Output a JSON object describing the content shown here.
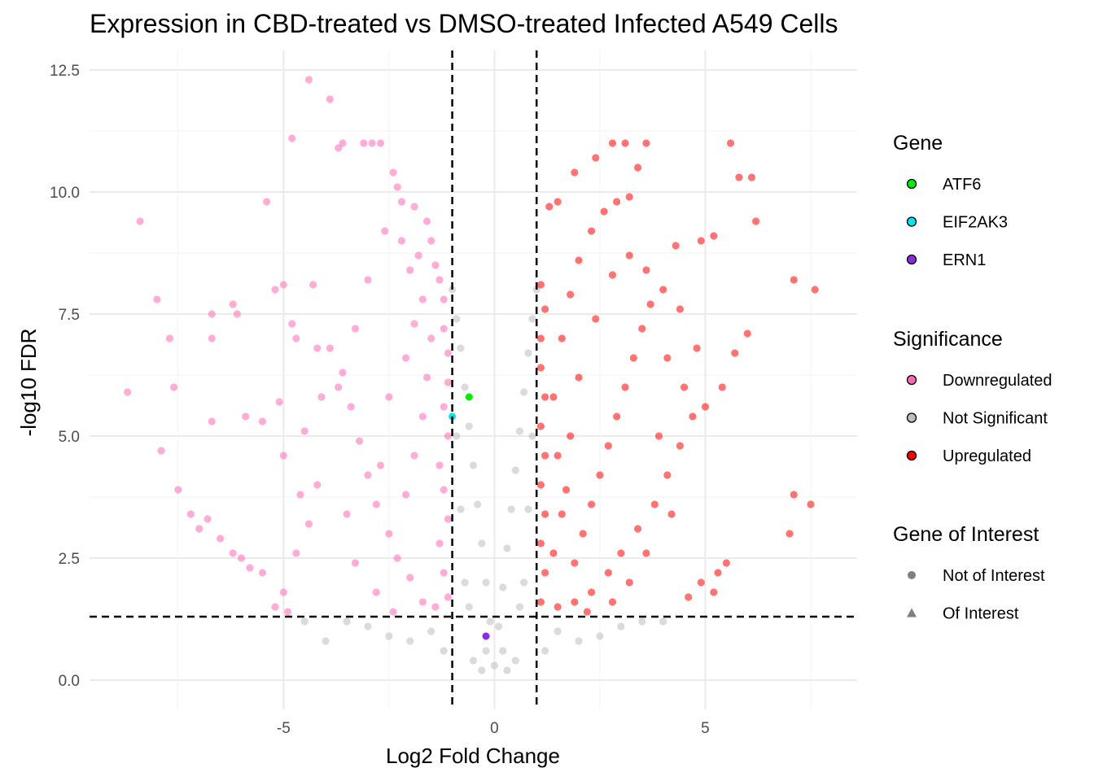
{
  "chart_data": {
    "type": "scatter",
    "title": "Expression in CBD-treated vs DMSO-treated Infected A549 Cells",
    "xlabel": "Log2 Fold Change",
    "ylabel": "-log10 FDR",
    "xlim": [
      -9.6,
      8.6
    ],
    "ylim": [
      -0.6,
      12.9
    ],
    "x_ticks": [
      -5,
      0,
      5
    ],
    "x_tick_labels": [
      "-5",
      "0",
      "5"
    ],
    "y_ticks": [
      0,
      2.5,
      5,
      7.5,
      10,
      12.5
    ],
    "y_tick_labels": [
      "0.0",
      "2.5",
      "5.0",
      "7.5",
      "10.0",
      "12.5"
    ],
    "grid": true,
    "thresholds": {
      "log2fc": [
        -1,
        1
      ],
      "neg_log10_fdr": 1.3
    },
    "colors": {
      "Downregulated": "#ff69b4",
      "Not Significant": "#bebebe",
      "Upregulated": "#ff0000",
      "ATF6": "#00ee00",
      "EIF2AK3": "#00e5ee",
      "ERN1": "#8a2be2"
    },
    "series": [
      {
        "name": "Downregulated",
        "points": [
          [
            -8.4,
            9.4
          ],
          [
            -8.0,
            7.8
          ],
          [
            -8.7,
            5.9
          ],
          [
            -7.7,
            7.0
          ],
          [
            -7.6,
            6.0
          ],
          [
            -7.9,
            4.7
          ],
          [
            -7.5,
            3.9
          ],
          [
            -7.2,
            3.4
          ],
          [
            -7.0,
            3.1
          ],
          [
            -6.8,
            3.3
          ],
          [
            -6.7,
            7.5
          ],
          [
            -6.7,
            7.0
          ],
          [
            -6.7,
            5.3
          ],
          [
            -6.5,
            2.9
          ],
          [
            -6.2,
            2.6
          ],
          [
            -6.0,
            2.5
          ],
          [
            -5.8,
            2.3
          ],
          [
            -5.5,
            2.2
          ],
          [
            -6.2,
            7.7
          ],
          [
            -6.1,
            7.5
          ],
          [
            -5.9,
            5.4
          ],
          [
            -5.5,
            5.3
          ],
          [
            -5.4,
            9.8
          ],
          [
            -5.2,
            8.0
          ],
          [
            -5.1,
            5.7
          ],
          [
            -5.0,
            4.6
          ],
          [
            -5.0,
            8.1
          ],
          [
            -4.8,
            7.3
          ],
          [
            -4.7,
            7.0
          ],
          [
            -4.6,
            3.8
          ],
          [
            -4.5,
            5.1
          ],
          [
            -4.3,
            8.1
          ],
          [
            -4.2,
            6.8
          ],
          [
            -4.1,
            5.8
          ],
          [
            -4.4,
            12.3
          ],
          [
            -3.9,
            11.9
          ],
          [
            -4.8,
            11.1
          ],
          [
            -3.7,
            10.9
          ],
          [
            -3.6,
            11.0
          ],
          [
            -3.1,
            11.0
          ],
          [
            -2.9,
            11.0
          ],
          [
            -2.7,
            11.0
          ],
          [
            -2.4,
            10.4
          ],
          [
            -2.3,
            10.1
          ],
          [
            -2.2,
            9.8
          ],
          [
            -1.9,
            9.7
          ],
          [
            -1.6,
            9.4
          ],
          [
            -1.5,
            9.0
          ],
          [
            -1.8,
            8.7
          ],
          [
            -1.4,
            8.5
          ],
          [
            -1.3,
            8.2
          ],
          [
            -1.2,
            7.8
          ],
          [
            -1.2,
            7.2
          ],
          [
            -1.1,
            6.7
          ],
          [
            -1.1,
            6.1
          ],
          [
            -1.2,
            5.6
          ],
          [
            -1.1,
            5.0
          ],
          [
            -1.3,
            4.4
          ],
          [
            -1.2,
            3.9
          ],
          [
            -1.1,
            3.3
          ],
          [
            -1.3,
            2.8
          ],
          [
            -1.2,
            2.2
          ],
          [
            -1.1,
            1.7
          ],
          [
            -1.4,
            1.5
          ],
          [
            -1.7,
            1.6
          ],
          [
            -2.0,
            2.1
          ],
          [
            -2.3,
            2.5
          ],
          [
            -2.5,
            3.0
          ],
          [
            -2.8,
            3.6
          ],
          [
            -3.0,
            4.2
          ],
          [
            -3.2,
            4.9
          ],
          [
            -3.4,
            5.6
          ],
          [
            -3.6,
            6.3
          ],
          [
            -3.9,
            6.8
          ],
          [
            -4.2,
            4.0
          ],
          [
            -4.4,
            3.2
          ],
          [
            -4.7,
            2.6
          ],
          [
            -5.0,
            1.8
          ],
          [
            -5.2,
            1.5
          ],
          [
            -4.9,
            1.4
          ],
          [
            -3.3,
            2.4
          ],
          [
            -2.8,
            1.8
          ],
          [
            -2.4,
            1.4
          ],
          [
            -2.1,
            3.8
          ],
          [
            -1.9,
            4.6
          ],
          [
            -1.7,
            5.4
          ],
          [
            -1.6,
            6.2
          ],
          [
            -1.5,
            7.0
          ],
          [
            -1.7,
            7.8
          ],
          [
            -2.0,
            8.4
          ],
          [
            -2.2,
            9.0
          ],
          [
            -2.6,
            9.2
          ],
          [
            -3.0,
            8.2
          ],
          [
            -3.3,
            7.2
          ],
          [
            -3.7,
            6.0
          ],
          [
            -2.5,
            5.8
          ],
          [
            -2.1,
            6.6
          ],
          [
            -1.9,
            7.3
          ],
          [
            -2.7,
            4.4
          ],
          [
            -3.5,
            3.4
          ]
        ]
      },
      {
        "name": "Not Significant",
        "points": [
          [
            -1.0,
            8.0
          ],
          [
            -0.9,
            7.4
          ],
          [
            -0.8,
            6.8
          ],
          [
            -0.7,
            6.0
          ],
          [
            -0.6,
            5.2
          ],
          [
            -0.5,
            4.4
          ],
          [
            -0.4,
            3.6
          ],
          [
            -0.3,
            2.8
          ],
          [
            -0.2,
            2.0
          ],
          [
            -0.1,
            1.2
          ],
          [
            0.0,
            0.3
          ],
          [
            0.1,
            1.1
          ],
          [
            0.2,
            1.9
          ],
          [
            0.3,
            2.7
          ],
          [
            0.4,
            3.5
          ],
          [
            0.5,
            4.3
          ],
          [
            0.6,
            5.1
          ],
          [
            0.7,
            5.9
          ],
          [
            0.8,
            6.7
          ],
          [
            0.9,
            7.4
          ],
          [
            1.0,
            8.0
          ],
          [
            -0.9,
            5.0
          ],
          [
            -0.8,
            3.5
          ],
          [
            -0.7,
            2.0
          ],
          [
            0.7,
            2.0
          ],
          [
            0.8,
            3.5
          ],
          [
            0.9,
            5.0
          ],
          [
            -1.5,
            1.0
          ],
          [
            -2.0,
            0.8
          ],
          [
            -2.5,
            0.9
          ],
          [
            -3.0,
            1.1
          ],
          [
            -3.5,
            1.2
          ],
          [
            -4.0,
            0.8
          ],
          [
            -4.5,
            1.2
          ],
          [
            1.5,
            1.0
          ],
          [
            2.0,
            0.8
          ],
          [
            2.5,
            0.9
          ],
          [
            3.0,
            1.1
          ],
          [
            3.5,
            1.2
          ],
          [
            4.0,
            1.2
          ],
          [
            -0.5,
            0.4
          ],
          [
            -0.3,
            0.2
          ],
          [
            0.3,
            0.2
          ],
          [
            0.5,
            0.4
          ],
          [
            -1.2,
            0.6
          ],
          [
            1.2,
            0.6
          ],
          [
            -0.6,
            1.5
          ],
          [
            0.6,
            1.5
          ],
          [
            -0.2,
            0.6
          ],
          [
            0.2,
            0.6
          ]
        ]
      },
      {
        "name": "Upregulated",
        "points": [
          [
            1.1,
            8.1
          ],
          [
            1.2,
            7.6
          ],
          [
            1.1,
            7.0
          ],
          [
            1.1,
            6.4
          ],
          [
            1.2,
            5.8
          ],
          [
            1.1,
            5.2
          ],
          [
            1.2,
            4.6
          ],
          [
            1.1,
            4.0
          ],
          [
            1.2,
            3.4
          ],
          [
            1.1,
            2.8
          ],
          [
            1.2,
            2.2
          ],
          [
            1.1,
            1.6
          ],
          [
            1.5,
            1.5
          ],
          [
            1.9,
            1.6
          ],
          [
            2.3,
            1.8
          ],
          [
            2.7,
            2.2
          ],
          [
            3.0,
            2.6
          ],
          [
            3.4,
            3.1
          ],
          [
            3.8,
            3.6
          ],
          [
            4.1,
            4.2
          ],
          [
            4.4,
            4.8
          ],
          [
            4.7,
            5.4
          ],
          [
            5.0,
            5.6
          ],
          [
            5.4,
            6.0
          ],
          [
            5.7,
            6.7
          ],
          [
            6.0,
            7.1
          ],
          [
            5.6,
            11.0
          ],
          [
            5.8,
            10.3
          ],
          [
            6.1,
            10.3
          ],
          [
            6.2,
            9.4
          ],
          [
            7.1,
            8.2
          ],
          [
            7.6,
            8.0
          ],
          [
            7.0,
            3.0
          ],
          [
            7.1,
            3.8
          ],
          [
            7.5,
            3.6
          ],
          [
            5.5,
            2.4
          ],
          [
            5.3,
            2.2
          ],
          [
            5.2,
            1.8
          ],
          [
            4.9,
            2.0
          ],
          [
            4.6,
            1.7
          ],
          [
            5.2,
            9.1
          ],
          [
            4.9,
            9.0
          ],
          [
            4.3,
            8.9
          ],
          [
            4.0,
            8.0
          ],
          [
            3.7,
            7.7
          ],
          [
            3.5,
            7.2
          ],
          [
            3.3,
            6.6
          ],
          [
            3.1,
            6.0
          ],
          [
            2.9,
            5.4
          ],
          [
            2.7,
            4.8
          ],
          [
            2.5,
            4.2
          ],
          [
            2.3,
            3.6
          ],
          [
            2.1,
            3.0
          ],
          [
            1.9,
            2.4
          ],
          [
            1.6,
            3.4
          ],
          [
            1.5,
            4.6
          ],
          [
            1.4,
            5.8
          ],
          [
            1.6,
            7.0
          ],
          [
            1.8,
            7.9
          ],
          [
            2.0,
            8.6
          ],
          [
            2.3,
            9.2
          ],
          [
            2.6,
            9.6
          ],
          [
            2.9,
            9.8
          ],
          [
            1.5,
            9.8
          ],
          [
            1.3,
            9.7
          ],
          [
            2.8,
            11.0
          ],
          [
            3.1,
            11.0
          ],
          [
            3.6,
            11.0
          ],
          [
            2.4,
            10.7
          ],
          [
            1.9,
            10.4
          ],
          [
            3.4,
            10.5
          ],
          [
            3.2,
            9.9
          ],
          [
            4.1,
            6.6
          ],
          [
            4.5,
            6.0
          ],
          [
            3.9,
            5.0
          ],
          [
            4.2,
            3.4
          ],
          [
            3.6,
            2.6
          ],
          [
            3.2,
            2.0
          ],
          [
            2.8,
            1.6
          ],
          [
            2.2,
            1.4
          ],
          [
            1.8,
            5.0
          ],
          [
            2.0,
            6.2
          ],
          [
            2.4,
            7.4
          ],
          [
            2.8,
            8.3
          ],
          [
            3.2,
            8.7
          ],
          [
            3.6,
            8.4
          ],
          [
            4.4,
            7.6
          ],
          [
            4.8,
            6.8
          ],
          [
            1.4,
            2.6
          ],
          [
            1.7,
            3.9
          ]
        ]
      },
      {
        "name": "ATF6",
        "points": [
          [
            -0.6,
            5.8
          ]
        ]
      },
      {
        "name": "EIF2AK3",
        "points": [
          [
            -1.0,
            5.4
          ]
        ]
      },
      {
        "name": "ERN1",
        "points": [
          [
            -0.2,
            0.9
          ]
        ]
      }
    ],
    "legend": {
      "placement": "right",
      "groups": [
        {
          "title": "Gene",
          "items": [
            {
              "label": "ATF6",
              "color": "#00ee00",
              "shape": "circle-outlined"
            },
            {
              "label": "EIF2AK3",
              "color": "#00e5ee",
              "shape": "circle-outlined"
            },
            {
              "label": "ERN1",
              "color": "#8a2be2",
              "shape": "circle-outlined"
            }
          ]
        },
        {
          "title": "Significance",
          "items": [
            {
              "label": "Downregulated",
              "color": "#ff69b4",
              "shape": "circle-outlined"
            },
            {
              "label": "Not Significant",
              "color": "#bebebe",
              "shape": "circle-outlined"
            },
            {
              "label": "Upregulated",
              "color": "#ff0000",
              "shape": "circle-outlined"
            }
          ]
        },
        {
          "title": "Gene of Interest",
          "items": [
            {
              "label": "Not of Interest",
              "color": "#7f7f7f",
              "shape": "circle"
            },
            {
              "label": "Of Interest",
              "color": "#7f7f7f",
              "shape": "triangle"
            }
          ]
        }
      ]
    }
  }
}
